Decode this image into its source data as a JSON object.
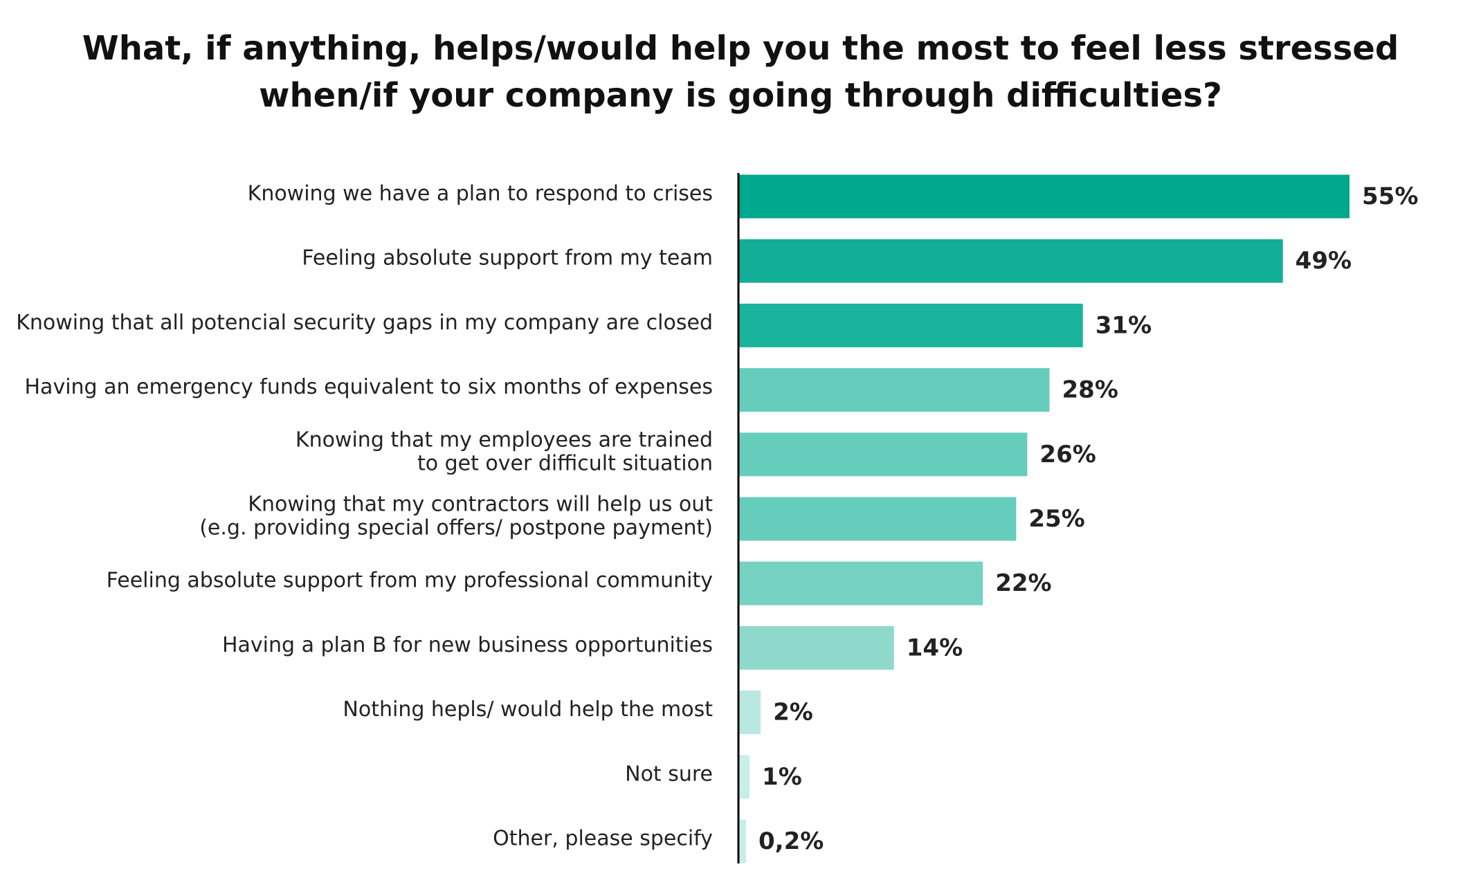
{
  "chart_data": {
    "type": "bar",
    "orientation": "horizontal",
    "title_lines": [
      "What, if anything, helps/would help you the most to feel less stressed",
      "when/if your company is going through difficulties?"
    ],
    "categories": [
      [
        "Knowing we have a plan to respond to crises"
      ],
      [
        "Feeling absolute support from my team"
      ],
      [
        "Knowing that all potencial security gaps in my company are closed"
      ],
      [
        "Having an emergency funds equivalent to six months of expenses"
      ],
      [
        "Knowing that my employees are trained",
        "to get over difficult situation"
      ],
      [
        "Knowing that my contractors will help us out",
        "(e.g. providing special offers/ postpone payment)"
      ],
      [
        "Feeling absolute support from my professional community"
      ],
      [
        "Having a plan B for new business opportunities"
      ],
      [
        "Nothing hepls/ would help the most"
      ],
      [
        "Not sure"
      ],
      [
        "Other, please specify"
      ]
    ],
    "values": [
      55,
      49,
      31,
      28,
      26,
      25,
      22,
      14,
      2,
      1,
      0.2
    ],
    "value_labels": [
      "55%",
      "49%",
      "31%",
      "28%",
      "26%",
      "25%",
      "22%",
      "14%",
      "2%",
      "1%",
      "0,2%"
    ],
    "colors": [
      "#00a88e",
      "#13ae96",
      "#1ab39b",
      "#66cdbc",
      "#66cdbc",
      "#66cdbc",
      "#75d1c2",
      "#8fd9cc",
      "#b8e8e0",
      "#c8eee8",
      "#c8eee8"
    ],
    "axis_color": "#000000",
    "xlim": [
      0,
      55
    ],
    "grid": false,
    "legend": "none"
  }
}
